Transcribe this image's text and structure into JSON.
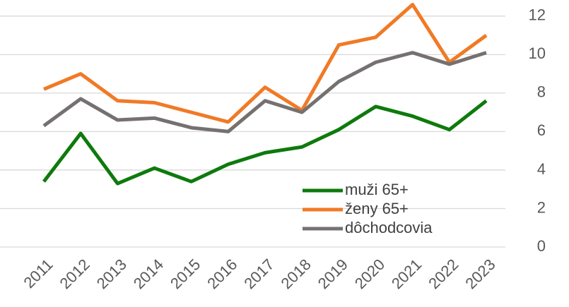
{
  "chart_data": {
    "type": "line",
    "categories": [
      "2011",
      "2012",
      "2013",
      "2014",
      "2015",
      "2016",
      "2017",
      "2018",
      "2019",
      "2020",
      "2021",
      "2022",
      "2023"
    ],
    "series": [
      {
        "name": "muži 65+",
        "color": "#0e7a0d",
        "values": [
          3.4,
          5.9,
          3.3,
          4.1,
          3.4,
          4.3,
          4.9,
          5.2,
          6.1,
          7.3,
          6.8,
          6.1,
          7.6
        ]
      },
      {
        "name": "ženy 65+",
        "color": "#f07a26",
        "values": [
          8.2,
          9.0,
          7.6,
          7.5,
          7.0,
          6.5,
          8.3,
          7.1,
          10.5,
          10.9,
          12.6,
          9.6,
          11.0
        ]
      },
      {
        "name": "dôchodcovia",
        "color": "#767171",
        "values": [
          6.3,
          7.7,
          6.6,
          6.7,
          6.2,
          6.0,
          7.6,
          7.0,
          8.6,
          9.6,
          10.1,
          9.5,
          10.1
        ]
      }
    ],
    "ylim": [
      0,
      12.8
    ],
    "yticks": [
      0,
      2,
      4,
      6,
      8,
      10,
      12
    ],
    "grid": true,
    "y_axis_side": "right",
    "legend": "lower-right"
  }
}
